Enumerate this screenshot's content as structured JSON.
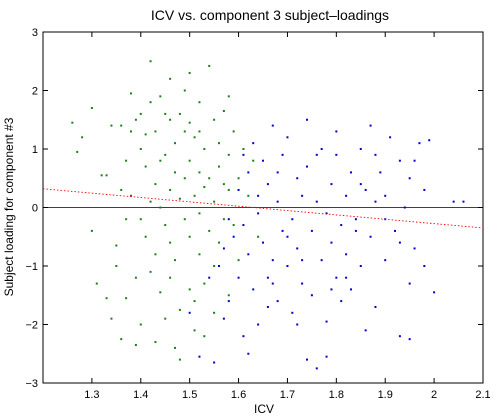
{
  "chart_data": {
    "type": "scatter",
    "title": "ICV vs. component 3 subject–loadings",
    "xlabel": "ICV",
    "ylabel": "Subject loading for component #3",
    "xlim": [
      1.2,
      2.1
    ],
    "ylim": [
      -3,
      3
    ],
    "xticks": [
      1.3,
      1.4,
      1.5,
      1.6,
      1.7,
      1.8,
      1.9,
      2,
      2.1
    ],
    "xtick_labels": [
      "1.3",
      "1.4",
      "1.5",
      "1.6",
      "1.7",
      "1.8",
      "1.9",
      "2",
      "2.1"
    ],
    "yticks": [
      -3,
      -2,
      -1,
      0,
      1,
      2,
      3
    ],
    "ytick_labels": [
      "−3",
      "−2",
      "−1",
      "0",
      "1",
      "2",
      "3"
    ],
    "grid": false,
    "zero_line": {
      "y": 0,
      "color": "#000000"
    },
    "trend_line": {
      "x": [
        1.2,
        2.1
      ],
      "y": [
        0.32,
        -0.35
      ],
      "color": "#ff0000",
      "style": "dotted"
    },
    "series": [
      {
        "color": "#1a7f1a",
        "points": [
          [
            1.26,
            1.45
          ],
          [
            1.27,
            0.95
          ],
          [
            1.28,
            1.2
          ],
          [
            1.3,
            1.7
          ],
          [
            1.3,
            -0.4
          ],
          [
            1.31,
            -1.3
          ],
          [
            1.32,
            0.55
          ],
          [
            1.33,
            0.55
          ],
          [
            1.33,
            -1.55
          ],
          [
            1.34,
            1.4
          ],
          [
            1.35,
            -0.65
          ],
          [
            1.35,
            -1.0
          ],
          [
            1.36,
            1.4
          ],
          [
            1.36,
            -2.25
          ],
          [
            1.37,
            0.8
          ],
          [
            1.37,
            -1.55
          ],
          [
            1.38,
            1.95
          ],
          [
            1.38,
            1.3
          ],
          [
            1.38,
            0.2
          ],
          [
            1.39,
            -2.35
          ],
          [
            1.39,
            1.5
          ],
          [
            1.4,
            1.0
          ],
          [
            1.4,
            -0.2
          ],
          [
            1.4,
            -2.0
          ],
          [
            1.41,
            1.25
          ],
          [
            1.41,
            0.7
          ],
          [
            1.42,
            2.5
          ],
          [
            1.42,
            0.1
          ],
          [
            1.42,
            -1.1
          ],
          [
            1.43,
            1.3
          ],
          [
            1.43,
            0.4
          ],
          [
            1.43,
            -0.8
          ],
          [
            1.44,
            1.9
          ],
          [
            1.44,
            0.0
          ],
          [
            1.44,
            -1.45
          ],
          [
            1.45,
            1.6
          ],
          [
            1.45,
            0.9
          ],
          [
            1.45,
            -0.3
          ],
          [
            1.46,
            2.2
          ],
          [
            1.46,
            0.3
          ],
          [
            1.46,
            -0.6
          ],
          [
            1.46,
            -1.2
          ],
          [
            1.47,
            1.1
          ],
          [
            1.47,
            0.6
          ],
          [
            1.47,
            -0.9
          ],
          [
            1.48,
            1.6
          ],
          [
            1.48,
            0.15
          ],
          [
            1.48,
            -1.75
          ],
          [
            1.49,
            1.3
          ],
          [
            1.49,
            0.5
          ],
          [
            1.49,
            -0.2
          ],
          [
            1.5,
            1.45
          ],
          [
            1.5,
            0.8
          ],
          [
            1.5,
            -0.5
          ],
          [
            1.5,
            -1.4
          ],
          [
            1.51,
            1.2
          ],
          [
            1.51,
            0.2
          ],
          [
            1.51,
            -2.1
          ],
          [
            1.52,
            1.8
          ],
          [
            1.52,
            0.6
          ],
          [
            1.52,
            -0.1
          ],
          [
            1.52,
            -0.8
          ],
          [
            1.53,
            1.0
          ],
          [
            1.53,
            0.35
          ],
          [
            1.53,
            -1.3
          ],
          [
            1.54,
            2.42
          ],
          [
            1.54,
            0.5
          ],
          [
            1.54,
            -0.4
          ],
          [
            1.55,
            1.5
          ],
          [
            1.55,
            0.1
          ],
          [
            1.55,
            -1.0
          ],
          [
            1.56,
            1.1
          ],
          [
            1.56,
            0.7
          ],
          [
            1.56,
            -0.6
          ],
          [
            1.57,
            1.65
          ],
          [
            1.57,
            -0.2
          ],
          [
            1.58,
            0.9
          ],
          [
            1.58,
            0.3
          ],
          [
            1.58,
            -1.5
          ],
          [
            1.59,
            1.3
          ],
          [
            1.59,
            -0.3
          ],
          [
            1.6,
            0.5
          ],
          [
            1.6,
            -0.9
          ],
          [
            1.61,
            1.0
          ],
          [
            1.62,
            0.2
          ],
          [
            1.63,
            0.8
          ],
          [
            1.64,
            -0.5
          ],
          [
            1.4,
            1.6
          ],
          [
            1.43,
            -2.3
          ],
          [
            1.47,
            -2.4
          ],
          [
            1.41,
            -0.5
          ],
          [
            1.44,
            0.8
          ],
          [
            1.49,
            2.0
          ],
          [
            1.51,
            -1.6
          ],
          [
            1.53,
            -2.2
          ],
          [
            1.36,
            0.3
          ],
          [
            1.39,
            -1.2
          ],
          [
            1.58,
            1.9
          ],
          [
            1.45,
            -1.9
          ],
          [
            1.5,
            2.3
          ],
          [
            1.37,
            -0.2
          ],
          [
            1.55,
            -1.8
          ],
          [
            1.46,
            1.5
          ],
          [
            1.48,
            -2.6
          ],
          [
            1.52,
            1.3
          ],
          [
            1.34,
            -1.9
          ],
          [
            1.57,
            0.4
          ],
          [
            1.42,
            1.8
          ]
        ]
      },
      {
        "color": "#0000cc",
        "points": [
          [
            1.5,
            -1.8
          ],
          [
            1.52,
            -2.55
          ],
          [
            1.55,
            -2.65
          ],
          [
            1.56,
            -1.0
          ],
          [
            1.57,
            -0.7
          ],
          [
            1.58,
            -1.6
          ],
          [
            1.59,
            -0.5
          ],
          [
            1.6,
            -1.2
          ],
          [
            1.6,
            0.3
          ],
          [
            1.61,
            -0.3
          ],
          [
            1.61,
            -2.2
          ],
          [
            1.62,
            -0.8
          ],
          [
            1.62,
            0.6
          ],
          [
            1.63,
            -1.4
          ],
          [
            1.63,
            1.1
          ],
          [
            1.64,
            -0.1
          ],
          [
            1.64,
            -2.0
          ],
          [
            1.65,
            0.8
          ],
          [
            1.65,
            -0.6
          ],
          [
            1.66,
            -1.2
          ],
          [
            1.66,
            0.4
          ],
          [
            1.67,
            1.4
          ],
          [
            1.67,
            -0.9
          ],
          [
            1.68,
            0.1
          ],
          [
            1.68,
            -1.6
          ],
          [
            1.69,
            -0.4
          ],
          [
            1.69,
            0.9
          ],
          [
            1.7,
            -1.0
          ],
          [
            1.7,
            1.2
          ],
          [
            1.71,
            -0.2
          ],
          [
            1.71,
            -1.8
          ],
          [
            1.72,
            0.5
          ],
          [
            1.72,
            -0.7
          ],
          [
            1.73,
            -1.3
          ],
          [
            1.73,
            0.2
          ],
          [
            1.74,
            -2.6
          ],
          [
            1.74,
            0.7
          ],
          [
            1.75,
            -0.4
          ],
          [
            1.75,
            -1.5
          ],
          [
            1.76,
            -2.75
          ],
          [
            1.76,
            0.1
          ],
          [
            1.77,
            -0.9
          ],
          [
            1.77,
            1.0
          ],
          [
            1.78,
            -0.1
          ],
          [
            1.78,
            -1.95
          ],
          [
            1.79,
            0.4
          ],
          [
            1.79,
            -0.6
          ],
          [
            1.8,
            -1.2
          ],
          [
            1.8,
            0.9
          ],
          [
            1.81,
            -0.3
          ],
          [
            1.81,
            -1.6
          ],
          [
            1.82,
            0.2
          ],
          [
            1.82,
            -0.8
          ],
          [
            1.83,
            -1.4
          ],
          [
            1.83,
            0.6
          ],
          [
            1.84,
            -0.2
          ],
          [
            1.85,
            1.0
          ],
          [
            1.85,
            -1.0
          ],
          [
            1.86,
            0.3
          ],
          [
            1.87,
            -0.5
          ],
          [
            1.87,
            1.4
          ],
          [
            1.88,
            -1.7
          ],
          [
            1.88,
            0.1
          ],
          [
            1.89,
            0.6
          ],
          [
            1.9,
            -0.9
          ],
          [
            1.9,
            0.2
          ],
          [
            1.91,
            1.2
          ],
          [
            1.92,
            -0.4
          ],
          [
            1.93,
            0.8
          ],
          [
            1.93,
            -2.2
          ],
          [
            1.94,
            0.0
          ],
          [
            1.95,
            -1.3
          ],
          [
            1.95,
            0.5
          ],
          [
            1.96,
            -0.7
          ],
          [
            1.97,
            1.1
          ],
          [
            1.98,
            -1.0
          ],
          [
            1.98,
            0.3
          ],
          [
            1.99,
            1.15
          ],
          [
            2.0,
            -1.45
          ],
          [
            2.04,
            0.1
          ],
          [
            2.06,
            0.1
          ],
          [
            1.93,
            -0.6
          ],
          [
            1.95,
            -2.25
          ],
          [
            1.86,
            -2.1
          ],
          [
            1.84,
            -0.4
          ],
          [
            1.78,
            -2.55
          ],
          [
            1.72,
            -2.0
          ],
          [
            1.66,
            -1.7
          ],
          [
            1.62,
            -2.5
          ],
          [
            1.68,
            0.6
          ],
          [
            1.74,
            1.5
          ],
          [
            1.8,
            1.3
          ],
          [
            1.7,
            -0.5
          ],
          [
            1.76,
            0.9
          ],
          [
            1.82,
            -1.2
          ],
          [
            1.88,
            0.9
          ],
          [
            1.64,
            0.2
          ],
          [
            1.58,
            -0.2
          ],
          [
            1.9,
            -0.2
          ],
          [
            1.96,
            0.8
          ],
          [
            1.73,
            -0.9
          ],
          [
            1.79,
            -1.4
          ],
          [
            1.85,
            0.4
          ],
          [
            1.67,
            -1.3
          ],
          [
            1.61,
            0.9
          ],
          [
            1.54,
            -1.2
          ],
          [
            1.57,
            -1.9
          ]
        ]
      }
    ]
  }
}
